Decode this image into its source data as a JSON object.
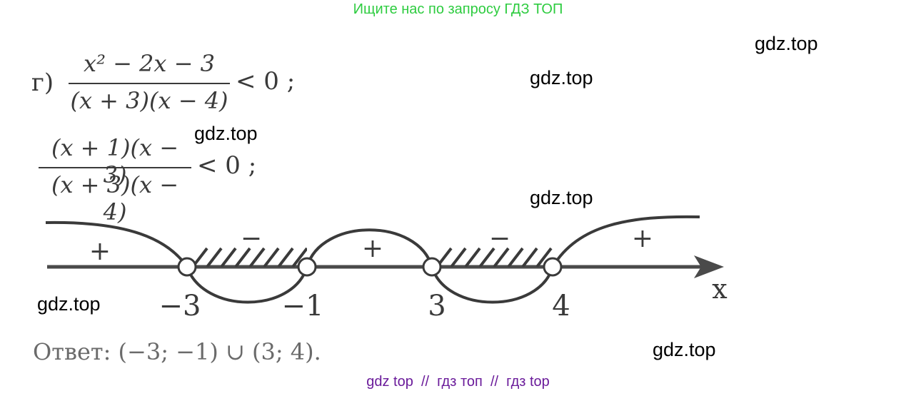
{
  "banner": "Ищите нас по запросу ГДЗ ТОП",
  "watermarks": [
    "gdz.top",
    "gdz.top",
    "gdz.top",
    "gdz.top",
    "gdz.top",
    "gdz.top"
  ],
  "problem": {
    "label": "г)",
    "line1": {
      "numerator": "x² − 2x − 3",
      "denominator": "(x + 3)(x − 4)",
      "relation": "< 0 ;"
    },
    "line2": {
      "numerator": "(x + 1)(x − 3)",
      "denominator": "(x + 3)(x − 4)",
      "relation": "< 0 ;"
    }
  },
  "number_line": {
    "axis_label": "x",
    "points": [
      {
        "label": "−3",
        "value": -3
      },
      {
        "label": "−1",
        "value": -1
      },
      {
        "label": "3",
        "value": 3
      },
      {
        "label": "4",
        "value": 4
      }
    ],
    "interval_signs": [
      "+",
      "−",
      "+",
      "−",
      "+"
    ],
    "shaded_intervals": [
      [
        -3,
        -1
      ],
      [
        3,
        4
      ]
    ]
  },
  "answer": "Ответ: (−3; −1) ∪ (3; 4).",
  "footer": "gdz top  //  гдз топ  //  гдз top"
}
